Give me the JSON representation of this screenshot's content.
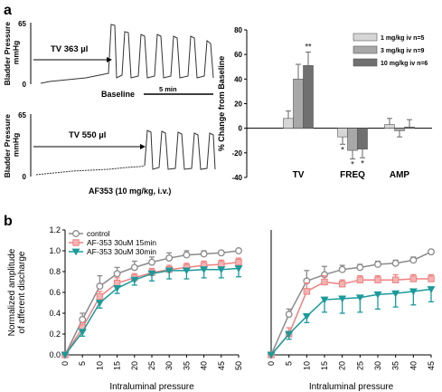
{
  "panel_labels": {
    "a": "a",
    "b": "b"
  },
  "colors": {
    "dark": "#222222",
    "grid": "#000000",
    "control": "#8a8a8a",
    "af15": "#f08080",
    "af30": "#1a9a9a",
    "bar_1": "#d6d6d6",
    "bar_3": "#a8a8a8",
    "bar_10": "#707070"
  },
  "traces": {
    "top": {
      "ylabel": "Bladder Pressure\nmmHg",
      "ymax_label": "65",
      "ymin_label": "0",
      "tv_label": "TV 363 µl",
      "caption": "Baseline",
      "scale_label": "5 min"
    },
    "bottom": {
      "ylabel": "Bladder Pressure\nmmHg",
      "ymax_label": "65",
      "ymin_label": "0",
      "tv_label": "TV 550 µl",
      "caption": "AF353 (10 mg/kg, i.v.)"
    }
  },
  "chart_data": [
    {
      "type": "bar",
      "title": "",
      "ylabel": "% Change from Baseline",
      "xlabel": "",
      "ylim": [
        -40,
        80
      ],
      "yticks": [
        -40,
        -20,
        0,
        20,
        40,
        60,
        80
      ],
      "categories": [
        "TV",
        "FREQ",
        "AMP"
      ],
      "legend_position": "top-right",
      "series": [
        {
          "name": "1 mg/kg iv n=5",
          "values": [
            8,
            -7,
            3
          ],
          "errors": [
            6,
            6,
            5
          ],
          "color_key": "bar_1"
        },
        {
          "name": "3 mg/kg iv n=9",
          "values": [
            40,
            -18,
            -2
          ],
          "errors": [
            12,
            7,
            5
          ],
          "color_key": "bar_3"
        },
        {
          "name": "10 mg/kg iv n=6",
          "values": [
            51,
            -17,
            1
          ],
          "errors": [
            11,
            7,
            6
          ],
          "color_key": "bar_10"
        }
      ],
      "annotations": [
        {
          "category": "TV",
          "series": 2,
          "text": "**",
          "side": "above"
        },
        {
          "category": "FREQ",
          "series": 0,
          "text": "*",
          "side": "below"
        },
        {
          "category": "FREQ",
          "series": 1,
          "text": "*",
          "side": "below"
        },
        {
          "category": "FREQ",
          "series": 2,
          "text": "*",
          "side": "below"
        }
      ]
    },
    {
      "type": "line",
      "title": "",
      "xlabel": "Intraluminal pressure",
      "ylabel": "Normalized amplitude\nof afferent discharge",
      "xlim": [
        0,
        50
      ],
      "ylim": [
        0,
        1.2
      ],
      "xticks": [
        0,
        5,
        10,
        15,
        20,
        25,
        30,
        35,
        40,
        45,
        50
      ],
      "yticks": [
        0,
        0.2,
        0.4,
        0.6,
        0.8,
        1.0,
        1.2
      ],
      "yticklabels": [
        "0.0",
        "0.2",
        "0.4",
        "0.6",
        "0.8",
        "1.0",
        "1.2"
      ],
      "legend_position": "top-left",
      "x": [
        0,
        5,
        10,
        15,
        20,
        25,
        30,
        35,
        40,
        45,
        50
      ],
      "series": [
        {
          "name": "control",
          "marker": "circle",
          "color_key": "control",
          "values": [
            0,
            0.34,
            0.66,
            0.78,
            0.84,
            0.89,
            0.93,
            0.96,
            0.97,
            0.98,
            1.0
          ],
          "errors": [
            0,
            0.06,
            0.1,
            0.06,
            0.06,
            0.05,
            0.05,
            0.04,
            0.03,
            0.02,
            0.01
          ]
        },
        {
          "name": "AF-353 30uM 15min",
          "marker": "square",
          "color_key": "af15",
          "values": [
            0,
            0.26,
            0.56,
            0.69,
            0.74,
            0.79,
            0.82,
            0.84,
            0.86,
            0.87,
            0.89
          ],
          "errors": [
            0,
            0.05,
            0.05,
            0.05,
            0.04,
            0.04,
            0.04,
            0.04,
            0.04,
            0.04,
            0.04
          ]
        },
        {
          "name": "AF-353 30uM 30min",
          "marker": "triangle-down",
          "color_key": "af30",
          "values": [
            0,
            0.22,
            0.5,
            0.64,
            0.72,
            0.78,
            0.81,
            0.81,
            0.82,
            0.82,
            0.83
          ],
          "errors": [
            0,
            0.04,
            0.05,
            0.05,
            0.05,
            0.07,
            0.08,
            0.08,
            0.08,
            0.08,
            0.08
          ]
        }
      ]
    },
    {
      "type": "line",
      "title": "",
      "xlabel": "Intraluminal pressure",
      "ylabel": "",
      "xlim": [
        0,
        45
      ],
      "ylim": [
        0,
        1.2
      ],
      "xticks": [
        0,
        5,
        10,
        15,
        20,
        25,
        30,
        35,
        40,
        45
      ],
      "x": [
        0,
        5,
        10,
        15,
        20,
        25,
        30,
        35,
        40,
        45
      ],
      "series": [
        {
          "name": "control",
          "marker": "circle",
          "color_key": "control",
          "values": [
            0,
            0.39,
            0.71,
            0.77,
            0.82,
            0.84,
            0.87,
            0.88,
            0.91,
            0.99
          ],
          "errors": [
            0,
            0.05,
            0.1,
            0.08,
            0.04,
            0.03,
            0.03,
            0.03,
            0.03,
            0.02
          ]
        },
        {
          "name": "AF-353 30uM 15min",
          "marker": "square",
          "color_key": "af15",
          "values": [
            0,
            0.2,
            0.61,
            0.7,
            0.68,
            0.72,
            0.72,
            0.72,
            0.73,
            0.73
          ],
          "errors": [
            0,
            0.06,
            0.08,
            0.06,
            0.04,
            0.04,
            0.04,
            0.05,
            0.04,
            0.04
          ]
        },
        {
          "name": "AF-353 30uM 30min",
          "marker": "triangle-down",
          "color_key": "af30",
          "values": [
            0,
            0.2,
            0.37,
            0.53,
            0.54,
            0.55,
            0.58,
            0.59,
            0.61,
            0.63
          ],
          "errors": [
            0,
            0.05,
            0.06,
            0.12,
            0.14,
            0.14,
            0.14,
            0.13,
            0.13,
            0.12
          ]
        }
      ]
    }
  ]
}
